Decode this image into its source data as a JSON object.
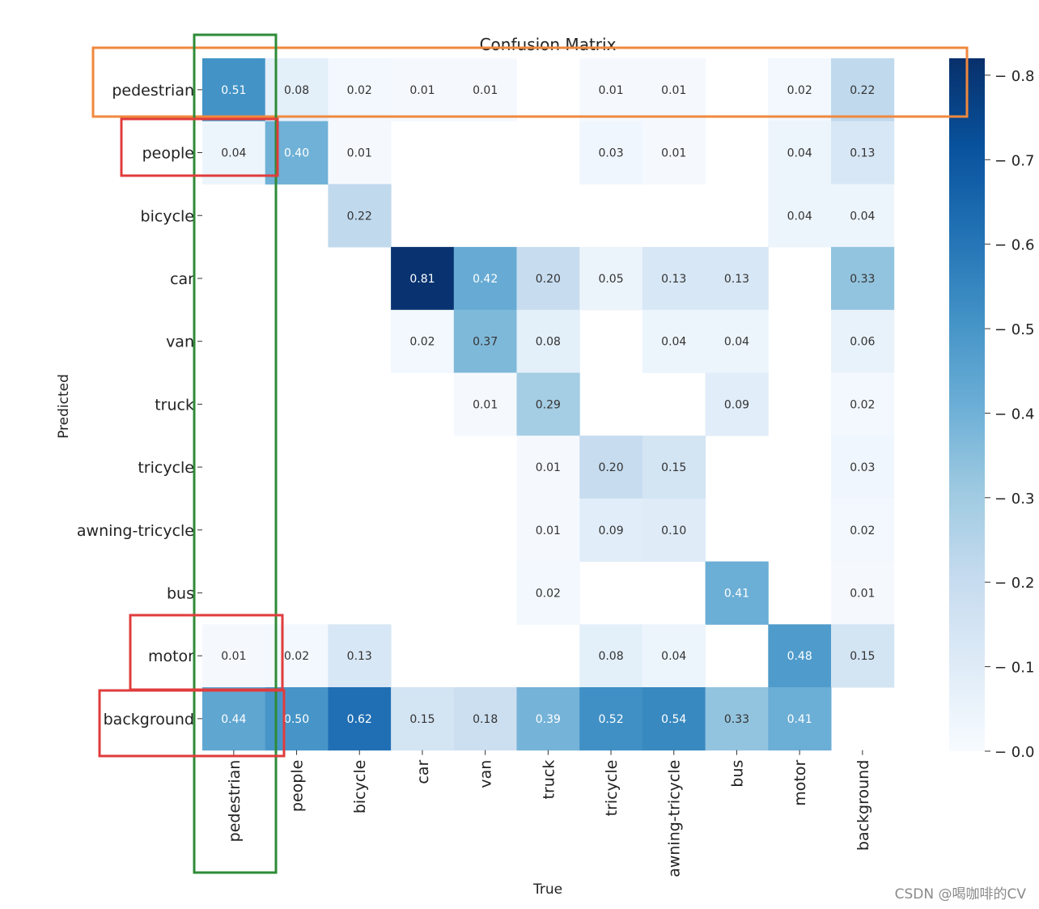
{
  "chart_data": {
    "type": "heatmap",
    "title": "Confusion Matrix",
    "xlabel": "True",
    "ylabel": "Predicted",
    "rows": [
      "pedestrian",
      "people",
      "bicycle",
      "car",
      "van",
      "truck",
      "tricycle",
      "awning-tricycle",
      "bus",
      "motor",
      "background"
    ],
    "cols": [
      "pedestrian",
      "people",
      "bicycle",
      "car",
      "van",
      "truck",
      "tricycle",
      "awning-tricycle",
      "bus",
      "motor",
      "background"
    ],
    "values": [
      [
        0.51,
        0.08,
        0.02,
        0.01,
        0.01,
        null,
        0.01,
        0.01,
        null,
        0.02,
        0.22
      ],
      [
        0.04,
        0.4,
        0.01,
        null,
        null,
        null,
        0.03,
        0.01,
        null,
        0.04,
        0.13
      ],
      [
        null,
        null,
        0.22,
        null,
        null,
        null,
        null,
        null,
        null,
        0.04,
        0.04
      ],
      [
        null,
        null,
        null,
        0.81,
        0.42,
        0.2,
        0.05,
        0.13,
        0.13,
        null,
        0.33
      ],
      [
        null,
        null,
        null,
        0.02,
        0.37,
        0.08,
        null,
        0.04,
        0.04,
        null,
        0.06
      ],
      [
        null,
        null,
        null,
        null,
        0.01,
        0.29,
        null,
        null,
        0.09,
        null,
        0.02
      ],
      [
        null,
        null,
        null,
        null,
        null,
        0.01,
        0.2,
        0.15,
        null,
        null,
        0.03
      ],
      [
        null,
        null,
        null,
        null,
        null,
        0.01,
        0.09,
        0.1,
        null,
        null,
        0.02
      ],
      [
        null,
        null,
        null,
        null,
        null,
        0.02,
        null,
        null,
        0.41,
        null,
        0.01
      ],
      [
        0.01,
        0.02,
        0.13,
        null,
        null,
        null,
        0.08,
        0.04,
        null,
        0.48,
        0.15
      ],
      [
        0.44,
        0.5,
        0.62,
        0.15,
        0.18,
        0.39,
        0.52,
        0.54,
        0.33,
        0.41,
        null
      ]
    ],
    "colorbar": {
      "min": 0.0,
      "max": 0.82,
      "ticks": [
        "0.0",
        "0.1",
        "0.2",
        "0.3",
        "0.4",
        "0.5",
        "0.6",
        "0.7",
        "0.8"
      ]
    },
    "colormap": [
      "#f7fbff",
      "#deebf7",
      "#c6dbef",
      "#9ecae1",
      "#6baed6",
      "#4292c6",
      "#2171b5",
      "#08519c",
      "#08306b"
    ],
    "highlights": [
      {
        "target": "row:pedestrian",
        "color": "#f0883e"
      },
      {
        "target": "col:pedestrian",
        "color": "#2e8b37"
      },
      {
        "target": "cell:people,pedestrian",
        "color": "#e03c3c"
      },
      {
        "target": "cell:motor,pedestrian",
        "color": "#e03c3c"
      },
      {
        "target": "cell:background,pedestrian",
        "color": "#e03c3c"
      }
    ]
  },
  "watermark": "CSDN @喝咖啡的CV"
}
